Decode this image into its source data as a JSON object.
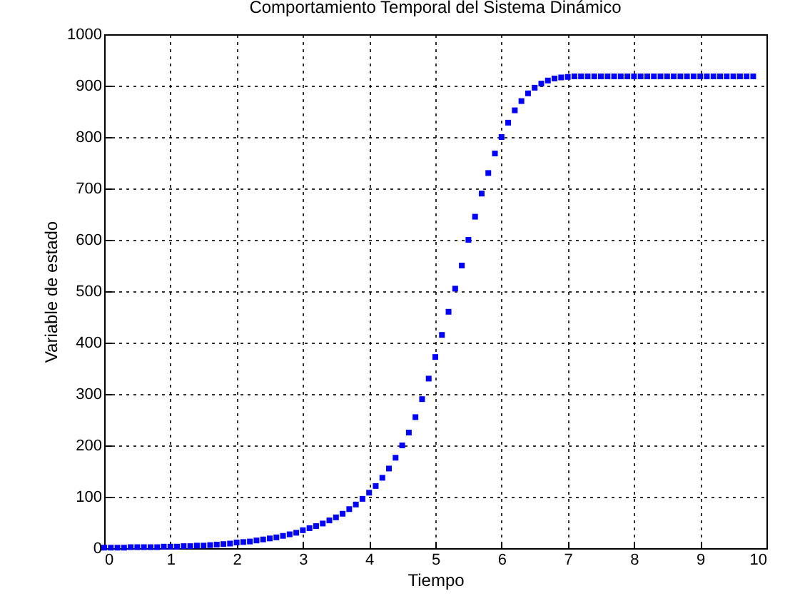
{
  "chart_data": {
    "type": "scatter",
    "title": "Comportamiento Temporal del Sistema Dinámico",
    "xlabel": "Tiempo",
    "ylabel": "Variable de estado",
    "x": [
      0,
      0.1,
      0.2,
      0.3,
      0.4,
      0.5,
      0.6,
      0.7,
      0.8,
      0.9,
      1,
      1.1,
      1.2,
      1.3,
      1.4,
      1.5,
      1.6,
      1.7,
      1.8,
      1.9,
      2,
      2.1,
      2.2,
      2.3,
      2.4,
      2.5,
      2.6,
      2.7,
      2.8,
      2.9,
      3,
      3.1,
      3.2,
      3.3,
      3.4,
      3.5,
      3.6,
      3.7,
      3.8,
      3.9,
      4,
      4.1,
      4.2,
      4.3,
      4.4,
      4.5,
      4.6,
      4.7,
      4.8,
      4.9,
      5,
      5.1,
      5.2,
      5.3,
      5.4,
      5.5,
      5.6,
      5.7,
      5.8,
      5.9,
      6,
      6.1,
      6.2,
      6.3,
      6.4,
      6.5,
      6.6,
      6.7,
      6.8,
      6.9,
      7,
      7.1,
      7.2,
      7.3,
      7.4,
      7.5,
      7.6,
      7.7,
      7.8,
      7.9,
      8,
      8.1,
      8.2,
      8.3,
      8.4,
      8.5,
      8.6,
      8.7,
      8.8,
      8.9,
      9,
      9.1,
      9.2,
      9.3,
      9.4,
      9.5,
      9.6,
      9.7,
      9.8
    ],
    "series": [
      {
        "color": "#0000ff",
        "values": [
          1,
          1,
          1,
          1,
          2,
          2,
          2,
          2,
          2,
          3,
          3,
          3,
          4,
          4,
          5,
          5,
          6,
          7,
          8,
          9,
          11,
          12,
          13,
          15,
          17,
          19,
          21,
          24,
          27,
          30,
          35,
          39,
          43,
          48,
          54,
          60,
          67,
          76,
          85,
          96,
          108,
          121,
          137,
          155,
          176,
          200,
          225,
          255,
          290,
          330,
          372,
          415,
          460,
          505,
          550,
          600,
          645,
          690,
          730,
          768,
          800,
          828,
          852,
          870,
          885,
          896,
          904,
          910,
          914,
          916,
          917,
          918,
          918,
          918,
          918,
          918,
          918,
          918,
          918,
          918,
          918,
          918,
          918,
          918,
          918,
          918,
          918,
          918,
          918,
          918,
          918,
          918,
          918,
          918,
          918,
          918,
          918,
          918,
          918
        ]
      }
    ],
    "xlim": [
      0,
      10
    ],
    "xticks": [
      0,
      1,
      2,
      3,
      4,
      5,
      6,
      7,
      8,
      9,
      10
    ],
    "ylim": [
      0,
      1000
    ],
    "yticks": [
      0,
      100,
      200,
      300,
      400,
      500,
      600,
      700,
      800,
      900,
      1000
    ],
    "grid": true,
    "marker": "square"
  }
}
